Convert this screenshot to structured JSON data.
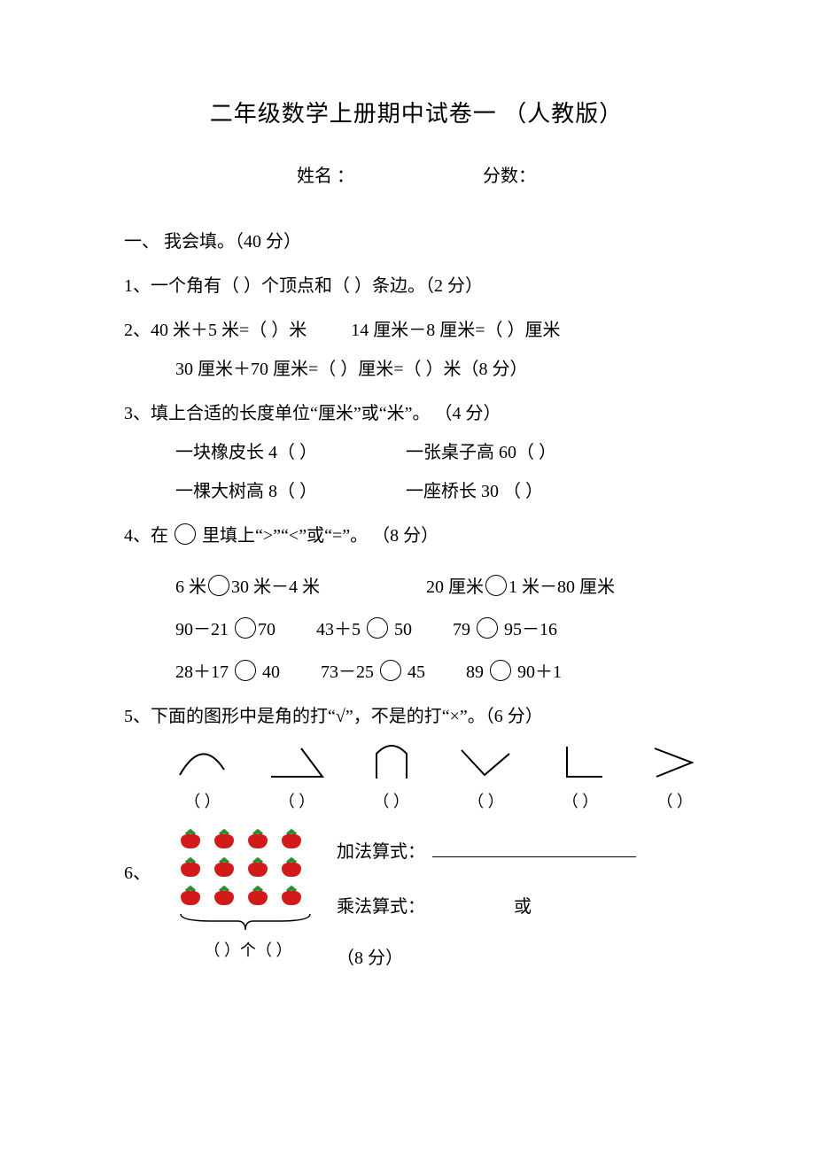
{
  "title": "二年级数学上册期中试卷一  （人教版）",
  "meta": {
    "name_label": "姓名 ：",
    "score_label": "分数："
  },
  "section1": {
    "heading": "一、 我会填。（40 分）"
  },
  "q1": {
    "text": "1、一个角有（   ）个顶点和（   ）条边。（2 分）"
  },
  "q2": {
    "line1a": "2、40 米＋5 米=（   ）米",
    "line1b": "14 厘米－8 厘米=（   ）厘米",
    "line2": "30 厘米＋70 厘米=（    ）厘米=（   ）米（8 分）"
  },
  "q3": {
    "head": "3、填上合适的长度单位“厘米”或“米”。 （4 分）",
    "a": "一块橡皮长 4（    ）",
    "b": "一张桌子高 60（    ）",
    "c": "一棵大树高 8（    ）",
    "d": "一座桥长 30 （     ）"
  },
  "q4": {
    "head_pre": "4、在 ",
    "head_post": " 里填上“>”“<”或“=”。 （8 分）",
    "r1a_pre": "6 米",
    "r1a_post": "30 米－4 米",
    "r1b_pre": "20 厘米",
    "r1b_post": "1 米－80 厘米",
    "r2a_pre": "90－21 ",
    "r2a_post": "70",
    "r2b_pre": "43＋5 ",
    "r2b_post": " 50",
    "r2c_pre": "79 ",
    "r2c_post": " 95－16",
    "r3a_pre": "28＋17 ",
    "r3a_post": " 40",
    "r3b_pre": "73－25 ",
    "r3b_post": " 45",
    "r3c_pre": "89 ",
    "r3c_post": " 90＋1"
  },
  "q5": {
    "head": "5、下面的图形中是角的打“√”，不是的打“×”。（6 分）",
    "paren": "（  ）"
  },
  "q6": {
    "label": "6、",
    "berry_caption": "（  ）个（  ）",
    "add_label": "加法算式：",
    "mul_label": "乘法算式：",
    "or_label": "或",
    "points": "（8 分）",
    "rows": 3,
    "cols": 4,
    "berry_color": "#d21a1a",
    "leaf_color": "#2e8b2e"
  }
}
